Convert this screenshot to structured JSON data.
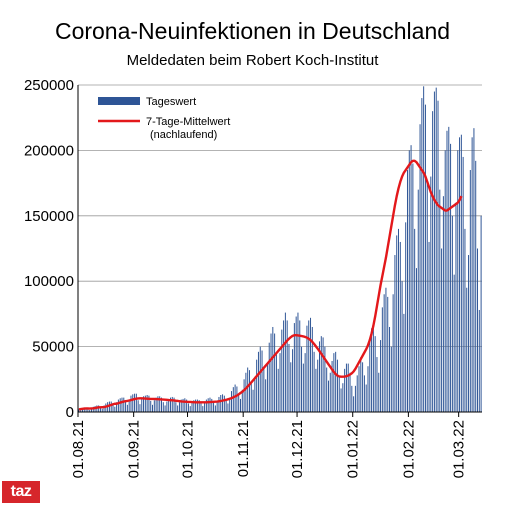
{
  "header": {
    "title": "Corona-Neuinfektionen in Deutschland",
    "subtitle": "Meldedaten beim Robert Koch-Institut"
  },
  "logo": {
    "text": "taz"
  },
  "colors": {
    "bars": "#2e5596",
    "line": "#e3181b",
    "logo": "#d6262b"
  },
  "chart_data": {
    "type": "bar",
    "title": "Corona-Neuinfektionen in Deutschland",
    "subtitle": "Meldedaten beim Robert Koch-Institut",
    "xlabel": "",
    "ylabel": "",
    "ylim": [
      0,
      250000
    ],
    "yticks": [
      "0",
      "50000",
      "100000",
      "150000",
      "200000",
      "250000"
    ],
    "x_start": "01.08.21",
    "xticks": [
      "01.08.21",
      "01.09.21",
      "01.10.21",
      "01.11.21",
      "01.12.21",
      "01.01.22",
      "01.02.22",
      "01.03.22"
    ],
    "grid": "horizontal",
    "legend_position": "top-left",
    "series": [
      {
        "name": "Tageswert",
        "type": "bar",
        "values": [
          2000,
          3000,
          3000,
          3500,
          3000,
          2000,
          1500,
          3000,
          4000,
          4500,
          5000,
          5000,
          3500,
          2500,
          5000,
          6500,
          7500,
          8000,
          8000,
          6000,
          4000,
          7500,
          9500,
          10500,
          11000,
          11000,
          8000,
          5500,
          9500,
          12500,
          13500,
          14000,
          14000,
          9000,
          6000,
          10000,
          12000,
          12500,
          13000,
          12500,
          8500,
          5500,
          9000,
          11000,
          12000,
          12000,
          11000,
          7500,
          5000,
          8000,
          10000,
          11000,
          11500,
          11000,
          7500,
          5000,
          7500,
          9500,
          10000,
          10500,
          9500,
          6500,
          4500,
          7000,
          9000,
          9500,
          9500,
          9000,
          6500,
          4500,
          7000,
          9500,
          10500,
          11000,
          10000,
          7000,
          5000,
          8500,
          11500,
          13000,
          13500,
          12500,
          9000,
          6500,
          11000,
          16000,
          19000,
          21000,
          19500,
          14000,
          10000,
          17000,
          25000,
          30000,
          34000,
          32000,
          23000,
          17000,
          27000,
          40000,
          46000,
          50000,
          47000,
          34000,
          25000,
          37000,
          53000,
          60000,
          65000,
          60000,
          44000,
          33000,
          45000,
          63000,
          70000,
          76000,
          70000,
          52000,
          38000,
          48000,
          68000,
          73000,
          76000,
          70000,
          50000,
          37000,
          45000,
          66000,
          70000,
          72000,
          65000,
          46000,
          33000,
          40000,
          54000,
          58000,
          57000,
          50000,
          34000,
          24000,
          30000,
          39000,
          45000,
          46000,
          40000,
          27000,
          18000,
          22000,
          33000,
          37000,
          37000,
          30000,
          20000,
          12000,
          20000,
          28000,
          35000,
          42000,
          38000,
          28000,
          21000,
          35000,
          56000,
          64000,
          66000,
          58000,
          42000,
          30000,
          55000,
          80000,
          90000,
          95000,
          88000,
          65000,
          50000,
          90000,
          120000,
          135000,
          140000,
          130000,
          100000,
          75000,
          145000,
          185000,
          200000,
          204000,
          190000,
          140000,
          110000,
          170000,
          220000,
          240000,
          249000,
          235000,
          175000,
          130000,
          180000,
          230000,
          245000,
          248000,
          238000,
          170000,
          125000,
          165000,
          200000,
          215000,
          218000,
          205000,
          150000,
          105000,
          160000,
          200000,
          210000,
          212000,
          195000,
          140000,
          95000,
          120000,
          185000,
          210000,
          217000,
          192000,
          125000,
          78000,
          150000
        ]
      },
      {
        "name": "7-Tage-Mittelwert\n(nachlaufend)",
        "type": "line",
        "values": [
          2000,
          2200,
          2400,
          2600,
          2700,
          2700,
          2600,
          2700,
          2800,
          3000,
          3300,
          3600,
          3600,
          3700,
          3800,
          4100,
          4500,
          5000,
          5400,
          5900,
          6300,
          6300,
          6800,
          7200,
          7600,
          8000,
          8300,
          8500,
          8800,
          9100,
          9500,
          9900,
          10200,
          10400,
          10500,
          10500,
          10400,
          10300,
          10200,
          10100,
          10000,
          10000,
          10000,
          9900,
          9800,
          9700,
          9600,
          9500,
          9400,
          9300,
          9100,
          9000,
          8900,
          8800,
          8600,
          8500,
          8300,
          8100,
          8000,
          7900,
          7800,
          7700,
          7700,
          7600,
          7500,
          7400,
          7400,
          7400,
          7400,
          7400,
          7400,
          7400,
          7500,
          7600,
          7700,
          7800,
          7900,
          8000,
          8200,
          8400,
          8700,
          9000,
          9300,
          9700,
          10100,
          10600,
          11200,
          11900,
          12600,
          13500,
          14500,
          15500,
          16700,
          18000,
          19500,
          21000,
          22600,
          24200,
          25800,
          27400,
          29000,
          30600,
          32200,
          33800,
          35400,
          37000,
          38600,
          40200,
          41800,
          43400,
          45000,
          46600,
          48200,
          49800,
          51400,
          53000,
          54600,
          56000,
          57200,
          58200,
          58700,
          58700,
          58500,
          58300,
          58100,
          57800,
          57400,
          56800,
          56000,
          55000,
          53600,
          52000,
          50200,
          48400,
          46500,
          44500,
          42500,
          40500,
          38500,
          36500,
          34500,
          32500,
          30600,
          29000,
          27800,
          27200,
          27000,
          27000,
          27100,
          27400,
          27900,
          28600,
          29600,
          31000,
          33000,
          35500,
          38000,
          40500,
          43000,
          45500,
          48000,
          51000,
          55000,
          60000,
          66000,
          73000,
          81000,
          89000,
          97000,
          104000,
          111000,
          118000,
          126000,
          134000,
          142000,
          150000,
          158000,
          165000,
          171000,
          176000,
          180000,
          183000,
          185000,
          187000,
          189000,
          191000,
          192000,
          192000,
          191000,
          189000,
          187000,
          185000,
          183000,
          180000,
          176000,
          172000,
          168000,
          165000,
          162000,
          160000,
          158000,
          157000,
          156000,
          155000,
          154000,
          154000,
          155000,
          156000,
          157000,
          158000,
          159000,
          160000,
          162000,
          165000
        ]
      }
    ]
  }
}
